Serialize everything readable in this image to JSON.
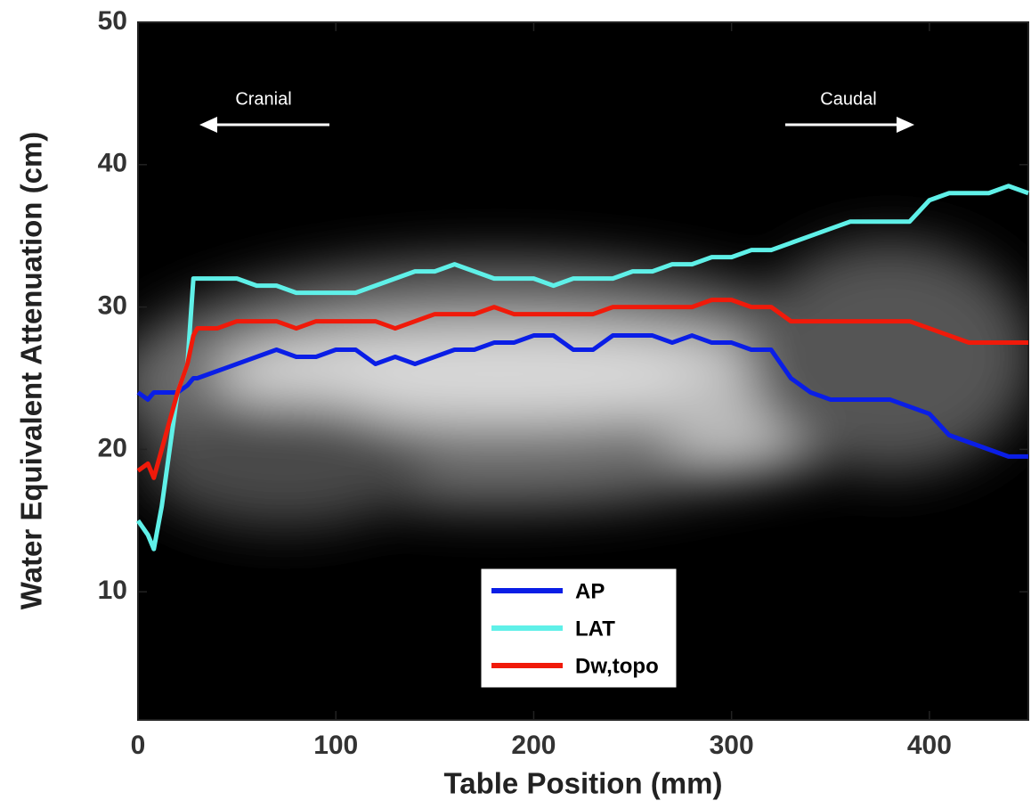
{
  "chart_data": {
    "type": "line",
    "xlabel": "Table Position (mm)",
    "ylabel": "Water Equivalent Attenuation (cm)",
    "annotations": [
      "Cranial",
      "Caudal"
    ],
    "x": [
      0,
      5,
      8,
      12,
      16,
      20,
      25,
      28,
      30,
      40,
      50,
      60,
      70,
      80,
      90,
      100,
      110,
      120,
      130,
      140,
      150,
      160,
      170,
      180,
      190,
      200,
      210,
      220,
      230,
      240,
      250,
      260,
      270,
      280,
      290,
      300,
      310,
      320,
      330,
      340,
      350,
      360,
      370,
      380,
      390,
      400,
      410,
      420,
      430,
      440,
      450
    ],
    "series": [
      {
        "name": "AP",
        "color": "#0a1ee6",
        "values": [
          24,
          23.5,
          24,
          24,
          24,
          24,
          24.5,
          25,
          25,
          25.5,
          26,
          26.5,
          27,
          26.5,
          26.5,
          27,
          27,
          26,
          26.5,
          26,
          26.5,
          27,
          27,
          27.5,
          27.5,
          28,
          28,
          27,
          27,
          28,
          28,
          28,
          27.5,
          28,
          27.5,
          27.5,
          27,
          27,
          25,
          24,
          23.5,
          23.5,
          23.5,
          23.5,
          23,
          22.5,
          21,
          20.5,
          20,
          19.5,
          19.5
        ]
      },
      {
        "name": "LAT",
        "color": "#5ff0e8",
        "values": [
          15,
          14,
          13,
          16,
          20,
          24,
          26,
          32,
          32,
          32,
          32,
          31.5,
          31.5,
          31,
          31,
          31,
          31,
          31.5,
          32,
          32.5,
          32.5,
          33,
          32.5,
          32,
          32,
          32,
          31.5,
          32,
          32,
          32,
          32.5,
          32.5,
          33,
          33,
          33.5,
          33.5,
          34,
          34,
          34.5,
          35,
          35.5,
          36,
          36,
          36,
          36,
          37.5,
          38,
          38,
          38,
          38.5,
          38
        ]
      },
      {
        "name": "Dw,topo",
        "color": "#f01a0a",
        "values": [
          18.5,
          19,
          18,
          20,
          22,
          24,
          26,
          28,
          28.5,
          28.5,
          29,
          29,
          29,
          28.5,
          29,
          29,
          29,
          29,
          28.5,
          29,
          29.5,
          29.5,
          29.5,
          30,
          29.5,
          29.5,
          29.5,
          29.5,
          29.5,
          30,
          30,
          30,
          30,
          30,
          30.5,
          30.5,
          30,
          30,
          29,
          29,
          29,
          29,
          29,
          29,
          29,
          28.5,
          28,
          27.5,
          27.5,
          27.5,
          27.5
        ]
      }
    ],
    "xlim": [
      0,
      450
    ],
    "xticks": [
      0,
      100,
      200,
      300,
      400
    ],
    "ylim": [
      1,
      50
    ],
    "yticks": [
      10,
      20,
      30,
      40,
      50
    ],
    "legend": "lower-center"
  }
}
